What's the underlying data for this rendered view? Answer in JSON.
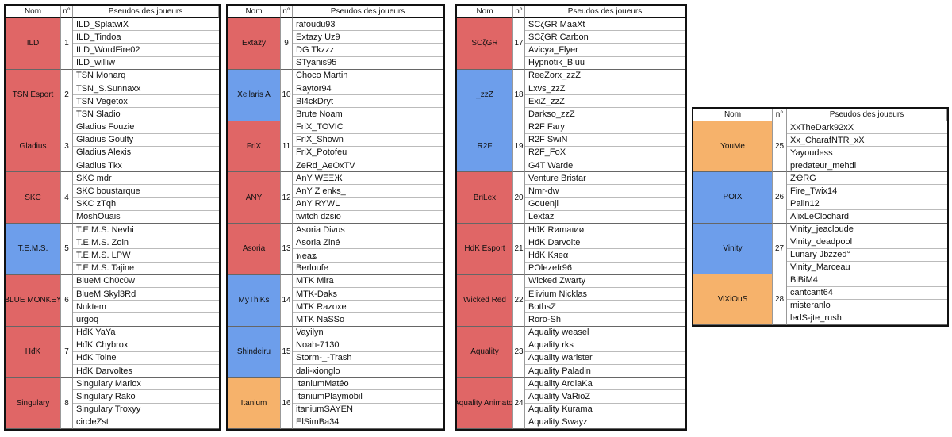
{
  "tables": [
    {
      "header": [
        "Nom",
        "n°",
        "Pseudos des joueurs"
      ],
      "teams": [
        {
          "name": "ILD",
          "number": 1,
          "color": "#e06666",
          "players": [
            "ILD_SplatwiX",
            "ILD_Tindoa",
            "ILD_WordFire02",
            "ILD_williw"
          ]
        },
        {
          "name": "TSN Esport",
          "number": 2,
          "color": "#e06666",
          "players": [
            "TSN Monarq",
            "TSN_S.Sunnaxx",
            "TSN Vegetox",
            "TSN Sladio"
          ]
        },
        {
          "name": "Gladius",
          "number": 3,
          "color": "#e06666",
          "players": [
            "Gladius Fouzie",
            "Gladius Goulty",
            "Gladius Alexis",
            "Gladius Tkx"
          ]
        },
        {
          "name": "SKC",
          "number": 4,
          "color": "#e06666",
          "players": [
            "SKC mdr",
            "SKC boustarque",
            "SKC zTqh",
            "MoshOuais"
          ]
        },
        {
          "name": "T.E.M.S.",
          "number": 5,
          "color": "#6d9eeb",
          "players": [
            "T.E.M.S. Nevhi",
            "T.E.M.S. Zoin",
            "T.E.M.S. LPW",
            "T.E.M.S. Tajine"
          ]
        },
        {
          "name": "BLUE MONKEY",
          "number": 6,
          "color": "#e06666",
          "players": [
            "BlueM Ch0c0w",
            "BlueM Skyl3Rd",
            "Nuktem",
            "urgoq"
          ]
        },
        {
          "name": "HđK",
          "number": 7,
          "color": "#e06666",
          "players": [
            "HđK YaYa",
            "HđK Chybrox",
            "HđK Toine",
            "HđK Darvoltes"
          ]
        },
        {
          "name": "Singulary",
          "number": 8,
          "color": "#e06666",
          "players": [
            "Singulary Marlox",
            "Singulary Rako",
            "Singulary Troxyy",
            "circleZst"
          ]
        }
      ]
    },
    {
      "header": [
        "Nom",
        "n°",
        "Pseudos des joueurs"
      ],
      "teams": [
        {
          "name": "Extazy",
          "number": 9,
          "color": "#e06666",
          "players": [
            "rafoudu93",
            "Extazy Uz9",
            "DG Tkzzz",
            "STyanis95"
          ]
        },
        {
          "name": "Xellaris A",
          "number": 10,
          "color": "#6d9eeb",
          "players": [
            "Choco Martin",
            "Raytor94",
            "Bl4ckDryt",
            "Brute Noam"
          ]
        },
        {
          "name": "FriX",
          "number": 11,
          "color": "#e06666",
          "players": [
            "FriX_TOVIC",
            "FriX_Shown",
            "FriX_Potofeu",
            "ZeRd_AeOxTV"
          ]
        },
        {
          "name": "ANY",
          "number": 12,
          "color": "#e06666",
          "players": [
            "AnY WΞΞЖ",
            "AnY Z enks_",
            "AnY RYWL",
            "twitch dzsio"
          ]
        },
        {
          "name": "Asoria",
          "number": 13,
          "color": "#e06666",
          "players": [
            "Asoria Divus",
            "Asoria Ziné",
            "ฟeaʑ",
            "Berloufe"
          ]
        },
        {
          "name": "MyThiKs",
          "number": 14,
          "color": "#6d9eeb",
          "players": [
            "MTK Mira",
            "MTK-Daks",
            "MTK Razoxe",
            "MTK NaSSo"
          ]
        },
        {
          "name": "Shindeiru",
          "number": 15,
          "color": "#6d9eeb",
          "players": [
            "Vayilyn",
            "Noah-7130",
            "Storm-_-Trash",
            "dali-xionglo"
          ]
        },
        {
          "name": "Itanium",
          "number": 16,
          "color": "#f6b26b",
          "players": [
            "ItaniumMatéo",
            "ItaniumPlaymobil",
            "itaniumSAYEN",
            "ElSimBa34"
          ]
        }
      ]
    },
    {
      "header": [
        "Nom",
        "n°",
        "Pseudos des joueurs"
      ],
      "teams": [
        {
          "name": "SCζGR",
          "number": 17,
          "color": "#e06666",
          "players": [
            "SCζGR MaaXt",
            "SCζGR Carbon",
            "Avicya_Flyer",
            "Hypnotik_Bluu"
          ]
        },
        {
          "name": "_zzZ",
          "number": 18,
          "color": "#6d9eeb",
          "players": [
            "ReeZorx_zzZ",
            "Lxvs_zzZ",
            "ExiZ_zzZ",
            "Darkso_zzZ"
          ]
        },
        {
          "name": "R2F",
          "number": 19,
          "color": "#6d9eeb",
          "players": [
            "R2F Fary",
            "R2F SwiN",
            "R2F_FoX",
            "G4T Wardel"
          ]
        },
        {
          "name": "BriLex",
          "number": 20,
          "color": "#e06666",
          "players": [
            "Venture Bristar",
            "Nmr-dw",
            "Gouenji",
            "Lextaz"
          ]
        },
        {
          "name": "HdK Esport",
          "number": 21,
          "color": "#e06666",
          "players": [
            "HđK Rømaıиø",
            "HđK Darvolte",
            "HđK Kяeα",
            "POlezefr96"
          ]
        },
        {
          "name": "Wicked Red",
          "number": 22,
          "color": "#e06666",
          "players": [
            "Wicked Zwarty",
            "Elivium Nicklas",
            "BothsZ",
            "Roro-Sh"
          ]
        },
        {
          "name": "Aquality",
          "number": 23,
          "color": "#e06666",
          "players": [
            "Aquality weasel",
            "Aquality rks",
            "Aquality warister",
            "Aquality Paladin"
          ]
        },
        {
          "name": "Aquality Animator",
          "number": 24,
          "color": "#e06666",
          "players": [
            "Aquality ArdiaKa",
            "Aquality VaRioZ",
            "Aquality Kurama",
            "Aquality Swayz"
          ]
        }
      ]
    },
    {
      "header": [
        "Nom",
        "n°",
        "Pseudos des joueurs"
      ],
      "teams": [
        {
          "name": "YouMe",
          "number": 25,
          "color": "#f6b26b",
          "players": [
            "XxTheDark92xX",
            "Xx_CharafNTR_xX",
            "Yayoudess",
            "predateur_mehdi"
          ]
        },
        {
          "name": "POIX",
          "number": 26,
          "color": "#6d9eeb",
          "players": [
            "ZҼRG",
            "Fire_Twix14",
            "Paiin12",
            "AlixLeClochard"
          ]
        },
        {
          "name": "Vinity",
          "number": 27,
          "color": "#6d9eeb",
          "players": [
            "Vinity_jeacloude",
            "Vinity_deadpool",
            "Lunary Jbzzed°",
            "Vinity_Marceau"
          ]
        },
        {
          "name": "ViXiOuS",
          "number": 28,
          "color": "#f6b26b",
          "players": [
            "BiBiM4",
            "cantcant64",
            "misteranlo",
            "ledS-jte_rush"
          ]
        }
      ]
    }
  ]
}
